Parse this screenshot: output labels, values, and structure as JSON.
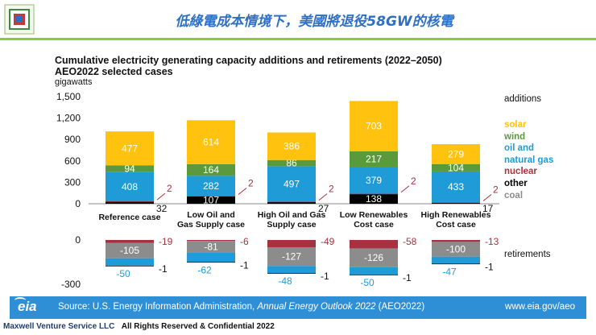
{
  "banner": {
    "title": "低綠電成本情境下，美國將退役58GW的核電"
  },
  "chart_data": {
    "type": "bar",
    "stacked": true,
    "title": "Cumulative electricity generating capacity additions and retirements (2022–2050)",
    "subtitle": "AEO2022 selected cases",
    "ylabel": "gigawatts",
    "ylim_additions": [
      0,
      1500
    ],
    "yticks_additions": [
      "1,500",
      "1,200",
      "900",
      "600",
      "300",
      "0"
    ],
    "ylim_retirements": [
      -300,
      0
    ],
    "yticks_retirements": [
      "0",
      "-300"
    ],
    "categories": [
      "Reference case",
      "Low Oil and Gas Supply case",
      "High Oil and Gas Supply case",
      "Low Renewables Cost case",
      "High Renewables Cost case"
    ],
    "category_lines": [
      [
        "Reference case"
      ],
      [
        "Low Oil and",
        "Gas Supply case"
      ],
      [
        "High Oil and Gas",
        "Supply case"
      ],
      [
        "Low Renewables",
        "Cost case"
      ],
      [
        "High Renewables",
        "Cost case"
      ]
    ],
    "additions": {
      "label": "additions",
      "series": [
        {
          "name": "other",
          "color": "#000000",
          "values": [
            32,
            107,
            27,
            138,
            17
          ],
          "labels": [
            "32",
            "107",
            "27",
            "138",
            "17"
          ]
        },
        {
          "name": "nuclear",
          "color": "#a6313f",
          "values": [
            2,
            2,
            2,
            2,
            2
          ],
          "labels": [
            "2",
            "2",
            "2",
            "2",
            "2"
          ]
        },
        {
          "name": "oil and natural gas",
          "color": "#1f9bd8",
          "values": [
            408,
            282,
            497,
            379,
            433
          ],
          "labels": [
            "408",
            "282",
            "497",
            "379",
            "433"
          ]
        },
        {
          "name": "wind",
          "color": "#5b9a3c",
          "values": [
            94,
            164,
            86,
            217,
            104
          ],
          "labels": [
            "94",
            "164",
            "86",
            "217",
            "104"
          ]
        },
        {
          "name": "solar",
          "color": "#ffc20e",
          "values": [
            477,
            614,
            386,
            703,
            279
          ],
          "labels": [
            "477",
            "614",
            "386",
            "703",
            "279"
          ]
        }
      ]
    },
    "retirements": {
      "label": "retirements",
      "series": [
        {
          "name": "nuclear",
          "color": "#a6313f",
          "values": [
            -19,
            -6,
            -49,
            -58,
            -13
          ],
          "labels": [
            "-19",
            "-6",
            "-49",
            "-58",
            "-13"
          ]
        },
        {
          "name": "coal",
          "color": "#8c8c8c",
          "values": [
            -105,
            -81,
            -127,
            -126,
            -100
          ],
          "labels": [
            "-105",
            "-81",
            "-127",
            "-126",
            "-100"
          ]
        },
        {
          "name": "oil and natural gas",
          "color": "#1f9bd8",
          "values": [
            -50,
            -62,
            -48,
            -50,
            -47
          ],
          "labels": [
            "-50",
            "-62",
            "-48",
            "-50",
            "-47"
          ]
        },
        {
          "name": "other",
          "color": "#000000",
          "values": [
            -1,
            -1,
            -1,
            -1,
            -1
          ],
          "labels": [
            "-1",
            "-1",
            "-1",
            "-1",
            "-1"
          ]
        }
      ]
    },
    "legend": [
      {
        "label": "solar",
        "color": "#ffc20e"
      },
      {
        "label": "wind",
        "color": "#5b9a3c"
      },
      {
        "label": "oil and",
        "color": "#1f9bd8"
      },
      {
        "label": "natural gas",
        "color": "#1f9bd8"
      },
      {
        "label": "nuclear",
        "color": "#a6313f"
      },
      {
        "label": "other",
        "color": "#000000"
      },
      {
        "label": "coal",
        "color": "#8c8c8c"
      }
    ]
  },
  "footer": {
    "logo_text": "eia",
    "source_prefix": "Source: U.S. Energy Information Administration, ",
    "source_title": "Annual Energy Outlook 2022",
    "source_suffix": " (AEO2022)",
    "website": "www.eia.gov/aeo"
  },
  "copyright": {
    "company": "Maxwell Venture Service LLC",
    "notice": "All Rights Reserved & Confidential 2022"
  },
  "colors": {
    "banner_title": "#2f6fc4",
    "banner_line": "#8dc63f",
    "footer_bg": "#2f8fd6"
  }
}
